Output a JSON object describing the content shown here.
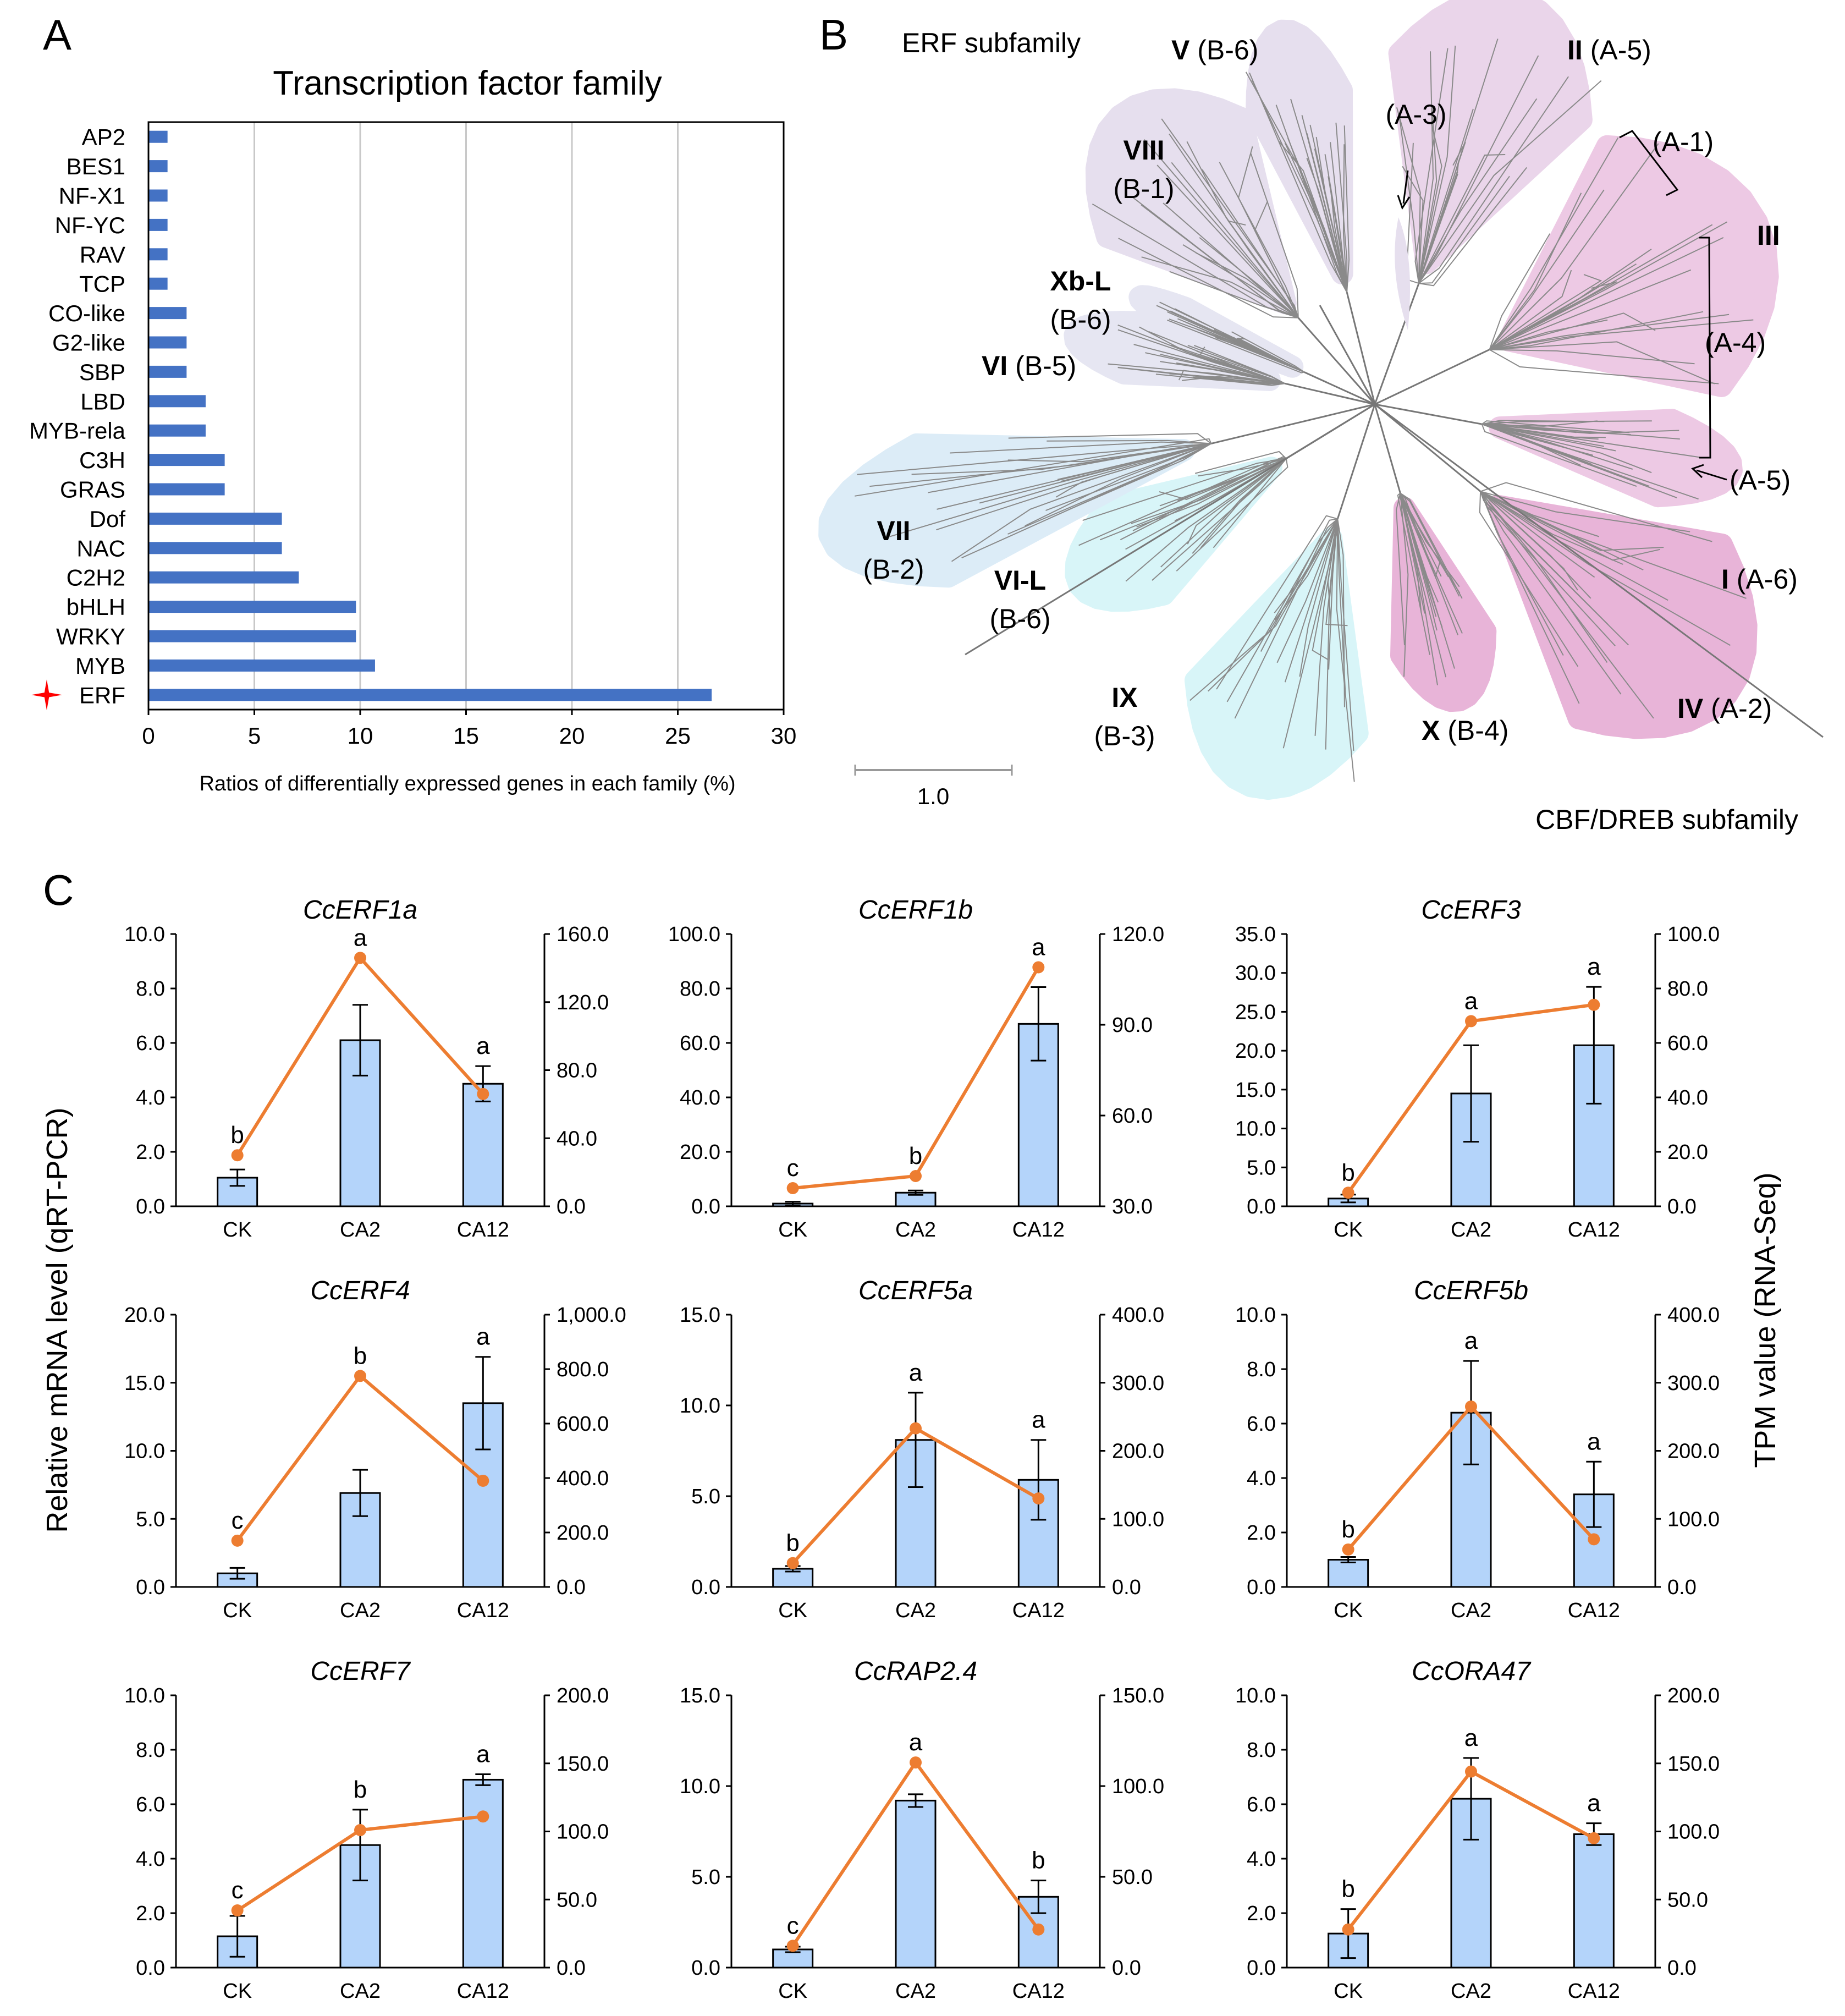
{
  "panel_labels": {
    "a": "A",
    "b": "B",
    "c": "C"
  },
  "chart_data": [
    {
      "type": "bar",
      "orientation": "horizontal",
      "title": "Transcription factor family",
      "xlabel": "Ratios of differentially expressed genes in each family (%)",
      "ylabel": "",
      "xlim": [
        0,
        30
      ],
      "xticks": [
        "0",
        "5",
        "10",
        "15",
        "20",
        "25",
        "30"
      ],
      "grid": true,
      "bar_color": "#4472c4",
      "marker_color": "#ff0000",
      "highlight": "ERF",
      "categories": [
        "AP2",
        "BES1",
        "NF-X1",
        "NF-YC",
        "RAV",
        "TCP",
        "CO-like",
        "G2-like",
        "SBP",
        "LBD",
        "MYB-rela",
        "C3H",
        "GRAS",
        "Dof",
        "NAC",
        "C2H2",
        "bHLH",
        "WRKY",
        "MYB",
        "ERF"
      ],
      "values": [
        0.9,
        0.9,
        0.9,
        0.9,
        0.9,
        0.9,
        1.8,
        1.8,
        1.8,
        2.7,
        2.7,
        3.6,
        3.6,
        6.3,
        6.3,
        7.1,
        9.8,
        9.8,
        10.7,
        26.6
      ]
    },
    {
      "type": "tree",
      "title": "ERF subfamily",
      "subtitle": "CBF/DREB subfamily",
      "scale_label": "1.0",
      "clades": [
        {
          "name": "V",
          "group": "(B-6)"
        },
        {
          "name": "II",
          "group": "(A-5)"
        },
        {
          "name": "",
          "group": "(A-3)"
        },
        {
          "name": "",
          "group": "(A-1)"
        },
        {
          "name": "III",
          "group": ""
        },
        {
          "name": "",
          "group": "(A-4)"
        },
        {
          "name": "",
          "group": "(A-5)"
        },
        {
          "name": "I",
          "group": "(A-6)"
        },
        {
          "name": "IV",
          "group": "(A-2)"
        },
        {
          "name": "X",
          "group": "(B-4)"
        },
        {
          "name": "IX",
          "group": "(B-3)"
        },
        {
          "name": "VI-L",
          "group": "(B-6)"
        },
        {
          "name": "VII",
          "group": "(B-2)"
        },
        {
          "name": "VI",
          "group": "(B-5)"
        },
        {
          "name": "Xb-L",
          "group": "(B-6)"
        },
        {
          "name": "VIII",
          "group": "(B-1)"
        }
      ]
    },
    {
      "type": "bar+line",
      "ylabel_left": "Relative mRNA level (qRT-PCR)",
      "ylabel_right": "TPM value (RNA-Seq)",
      "categories": [
        "CK",
        "CA2",
        "CA12"
      ],
      "bar_color": "#b4d4fa",
      "line_color": "#ed7d31",
      "panels": [
        {
          "gene": "CcERF1a",
          "left_ticks": [
            "0.0",
            "2.0",
            "4.0",
            "6.0",
            "8.0",
            "10.0"
          ],
          "left_lim": [
            0,
            10
          ],
          "right_ticks": [
            "0.0",
            "40.0",
            "80.0",
            "120.0",
            "160.0"
          ],
          "right_lim": [
            0,
            160
          ],
          "bars": [
            1.05,
            6.1,
            4.5
          ],
          "errors": [
            0.3,
            1.3,
            0.65
          ],
          "tpm": [
            30,
            146,
            66
          ],
          "letters": [
            "b",
            "a",
            "a"
          ]
        },
        {
          "gene": "CcERF1b",
          "left_ticks": [
            "0.0",
            "20.0",
            "40.0",
            "60.0",
            "80.0",
            "100.0"
          ],
          "left_lim": [
            0,
            100
          ],
          "right_ticks": [
            "30.0",
            "60.0",
            "90.0",
            "120.0"
          ],
          "right_lim": [
            30,
            120
          ],
          "bars": [
            1.0,
            5.0,
            67.0
          ],
          "errors": [
            0.7,
            0.8,
            13.5
          ],
          "tpm": [
            36,
            40,
            109
          ],
          "letters": [
            "c",
            "b",
            "a"
          ]
        },
        {
          "gene": "CcERF3",
          "left_ticks": [
            "0.0",
            "5.0",
            "10.0",
            "15.0",
            "20.0",
            "25.0",
            "30.0",
            "35.0"
          ],
          "left_lim": [
            0,
            35
          ],
          "right_ticks": [
            "0.0",
            "20.0",
            "40.0",
            "60.0",
            "80.0",
            "100.0"
          ],
          "right_lim": [
            0,
            100
          ],
          "bars": [
            1.0,
            14.5,
            20.7
          ],
          "errors": [
            0.5,
            6.2,
            7.5
          ],
          "tpm": [
            5,
            68,
            74
          ],
          "letters": [
            "b",
            "a",
            "a"
          ]
        },
        {
          "gene": "CcERF4",
          "left_ticks": [
            "0.0",
            "5.0",
            "10.0",
            "15.0",
            "20.0"
          ],
          "left_lim": [
            0,
            20
          ],
          "right_ticks": [
            "0.0",
            "200.0",
            "400.0",
            "600.0",
            "800.0",
            "1,000.0"
          ],
          "right_lim": [
            0,
            1000
          ],
          "bars": [
            1.0,
            6.9,
            13.5
          ],
          "errors": [
            0.4,
            1.7,
            3.4
          ],
          "tpm": [
            170,
            775,
            390
          ],
          "letters": [
            "c",
            "b",
            "a"
          ]
        },
        {
          "gene": "CcERF5a",
          "left_ticks": [
            "0.0",
            "5.0",
            "10.0",
            "15.0"
          ],
          "left_lim": [
            0,
            15
          ],
          "right_ticks": [
            "0.0",
            "100.0",
            "200.0",
            "300.0",
            "400.0"
          ],
          "right_lim": [
            0,
            400
          ],
          "bars": [
            1.0,
            8.1,
            5.9
          ],
          "errors": [
            0.15,
            2.6,
            2.2
          ],
          "tpm": [
            35,
            233,
            130
          ],
          "letters": [
            "b",
            "a",
            "a"
          ]
        },
        {
          "gene": "CcERF5b",
          "left_ticks": [
            "0.0",
            "2.0",
            "4.0",
            "6.0",
            "8.0",
            "10.0"
          ],
          "left_lim": [
            0,
            10
          ],
          "right_ticks": [
            "0.0",
            "100.0",
            "200.0",
            "300.0",
            "400.0"
          ],
          "right_lim": [
            0,
            400
          ],
          "bars": [
            1.0,
            6.4,
            3.4
          ],
          "errors": [
            0.1,
            1.9,
            1.2
          ],
          "tpm": [
            55,
            265,
            70
          ],
          "letters": [
            "b",
            "a",
            "a"
          ]
        },
        {
          "gene": "CcERF7",
          "left_ticks": [
            "0.0",
            "2.0",
            "4.0",
            "6.0",
            "8.0",
            "10.0"
          ],
          "left_lim": [
            0,
            10
          ],
          "right_ticks": [
            "0.0",
            "50.0",
            "100.0",
            "150.0",
            "200.0"
          ],
          "right_lim": [
            0,
            200
          ],
          "bars": [
            1.15,
            4.5,
            6.9
          ],
          "errors": [
            0.75,
            1.3,
            0.2
          ],
          "tpm": [
            42,
            101,
            111
          ],
          "letters": [
            "c",
            "b",
            "a"
          ]
        },
        {
          "gene": "CcRAP2.4",
          "left_ticks": [
            "0.0",
            "5.0",
            "10.0",
            "15.0"
          ],
          "left_lim": [
            0,
            15
          ],
          "right_ticks": [
            "0.0",
            "50.0",
            "100.0",
            "150.0"
          ],
          "right_lim": [
            0,
            150
          ],
          "bars": [
            1.0,
            9.2,
            3.9
          ],
          "errors": [
            0.15,
            0.35,
            0.9
          ],
          "tpm": [
            12,
            113,
            21
          ],
          "letters": [
            "c",
            "a",
            "b"
          ]
        },
        {
          "gene": "CcORA47",
          "left_ticks": [
            "0.0",
            "2.0",
            "4.0",
            "6.0",
            "8.0",
            "10.0"
          ],
          "left_lim": [
            0,
            10
          ],
          "right_ticks": [
            "0.0",
            "50.0",
            "100.0",
            "150.0",
            "200.0"
          ],
          "right_lim": [
            0,
            200
          ],
          "bars": [
            1.25,
            6.2,
            4.9
          ],
          "errors": [
            0.9,
            1.5,
            0.4
          ],
          "tpm": [
            28,
            144,
            95
          ],
          "letters": [
            "b",
            "a",
            "a"
          ]
        }
      ]
    }
  ]
}
